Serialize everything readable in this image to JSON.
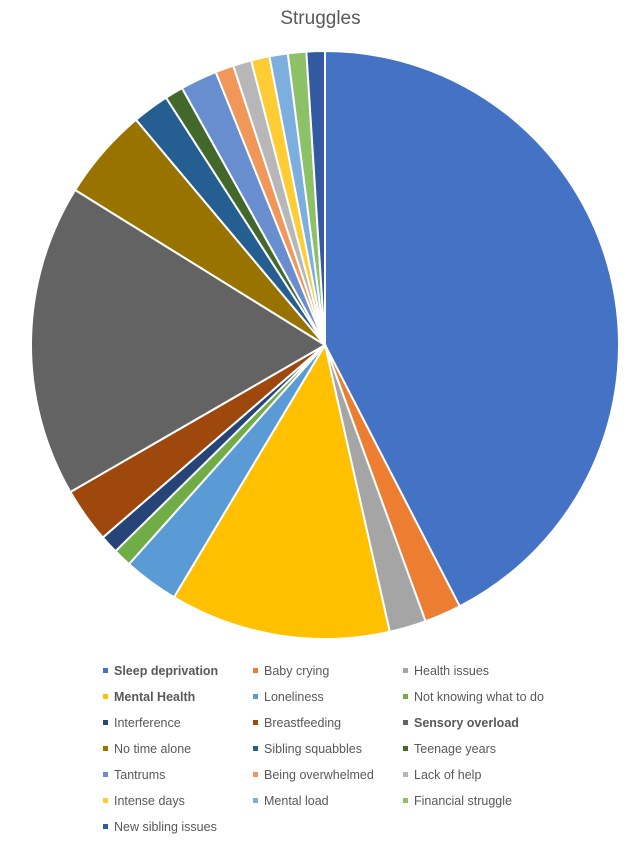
{
  "chart_data": {
    "type": "pie",
    "title": "Struggles",
    "legend_position": "bottom",
    "start_angle": "top, clockwise",
    "slices": [
      {
        "label": "Sleep deprivation",
        "value": 42,
        "color": "#4472C4",
        "bold": true
      },
      {
        "label": "Baby crying",
        "value": 2,
        "color": "#ED7D31"
      },
      {
        "label": "Health issues",
        "value": 2,
        "color": "#A5A5A5"
      },
      {
        "label": "Mental Health",
        "value": 12,
        "color": "#FFC000",
        "bold": true
      },
      {
        "label": "Loneliness",
        "value": 3,
        "color": "#5B9BD5"
      },
      {
        "label": "Not knowing what to do",
        "value": 1,
        "color": "#70AD47"
      },
      {
        "label": "Interference",
        "value": 1,
        "color": "#264478"
      },
      {
        "label": "Breastfeeding",
        "value": 3,
        "color": "#9E480E"
      },
      {
        "label": "Sensory overload",
        "value": 17,
        "color": "#636363",
        "bold": true
      },
      {
        "label": "No time alone",
        "value": 5,
        "color": "#997300"
      },
      {
        "label": "Sibling squabbles",
        "value": 2,
        "color": "#255E91"
      },
      {
        "label": "Teenage years",
        "value": 1,
        "color": "#43682B"
      },
      {
        "label": "Tantrums",
        "value": 2,
        "color": "#698ED0"
      },
      {
        "label": "Being overwhelmed",
        "value": 1,
        "color": "#F1975A"
      },
      {
        "label": "Lack of help",
        "value": 1,
        "color": "#B7B7B7"
      },
      {
        "label": "Intense days",
        "value": 1,
        "color": "#FFCD33"
      },
      {
        "label": "Mental load",
        "value": 1,
        "color": "#7CAFDD"
      },
      {
        "label": "Financial struggle",
        "value": 1,
        "color": "#8CC168"
      },
      {
        "label": "New sibling issues",
        "value": 1,
        "color": "#335AA1"
      }
    ]
  }
}
